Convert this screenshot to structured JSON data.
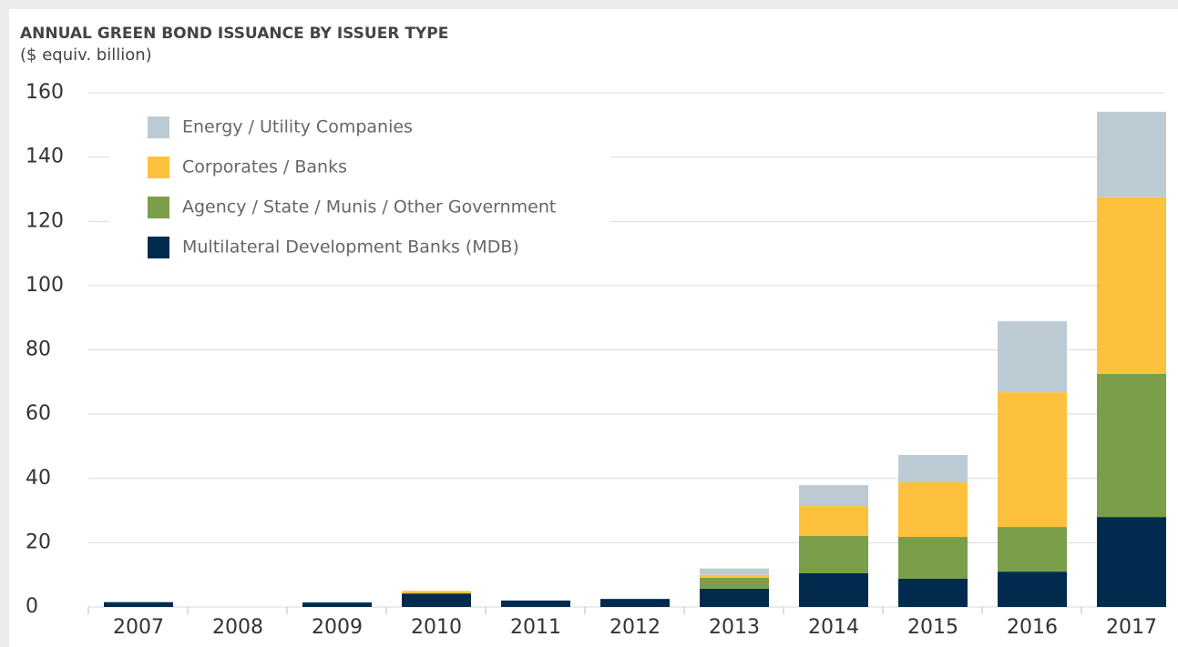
{
  "chart_data": {
    "type": "bar",
    "stacked": true,
    "title": "ANNUAL GREEN BOND ISSUANCE BY ISSUER TYPE",
    "subtitle": "($ equiv. billion)",
    "categories": [
      "2007",
      "2008",
      "2009",
      "2010",
      "2011",
      "2012",
      "2013",
      "2014",
      "2015",
      "2016",
      "2017"
    ],
    "series": [
      {
        "name": "Multilateral Development Banks (MDB)",
        "color": "#002b4f",
        "values": [
          1.5,
          0,
          1.4,
          4.2,
          2.0,
          2.5,
          5.7,
          10.5,
          8.8,
          11.0,
          28.0
        ]
      },
      {
        "name": "Agency / State / Munis / Other Government",
        "color": "#7a9e4a",
        "values": [
          0,
          0,
          0,
          0,
          0,
          0,
          3.4,
          11.6,
          13.0,
          13.9,
          44.5
        ]
      },
      {
        "name": "Corporates / Banks",
        "color": "#fdc13d",
        "values": [
          0,
          0,
          0,
          0.8,
          0,
          0,
          0.9,
          9.3,
          17.0,
          41.9,
          55.0
        ]
      },
      {
        "name": "Energy / Utility Companies",
        "color": "#bccbd3",
        "values": [
          0,
          0,
          0,
          0,
          0,
          0,
          2.0,
          6.5,
          8.5,
          22.1,
          26.6
        ]
      }
    ],
    "ylim": [
      0,
      160
    ],
    "yticks": [
      0,
      20,
      40,
      60,
      80,
      100,
      120,
      140,
      160
    ],
    "grid": true
  }
}
